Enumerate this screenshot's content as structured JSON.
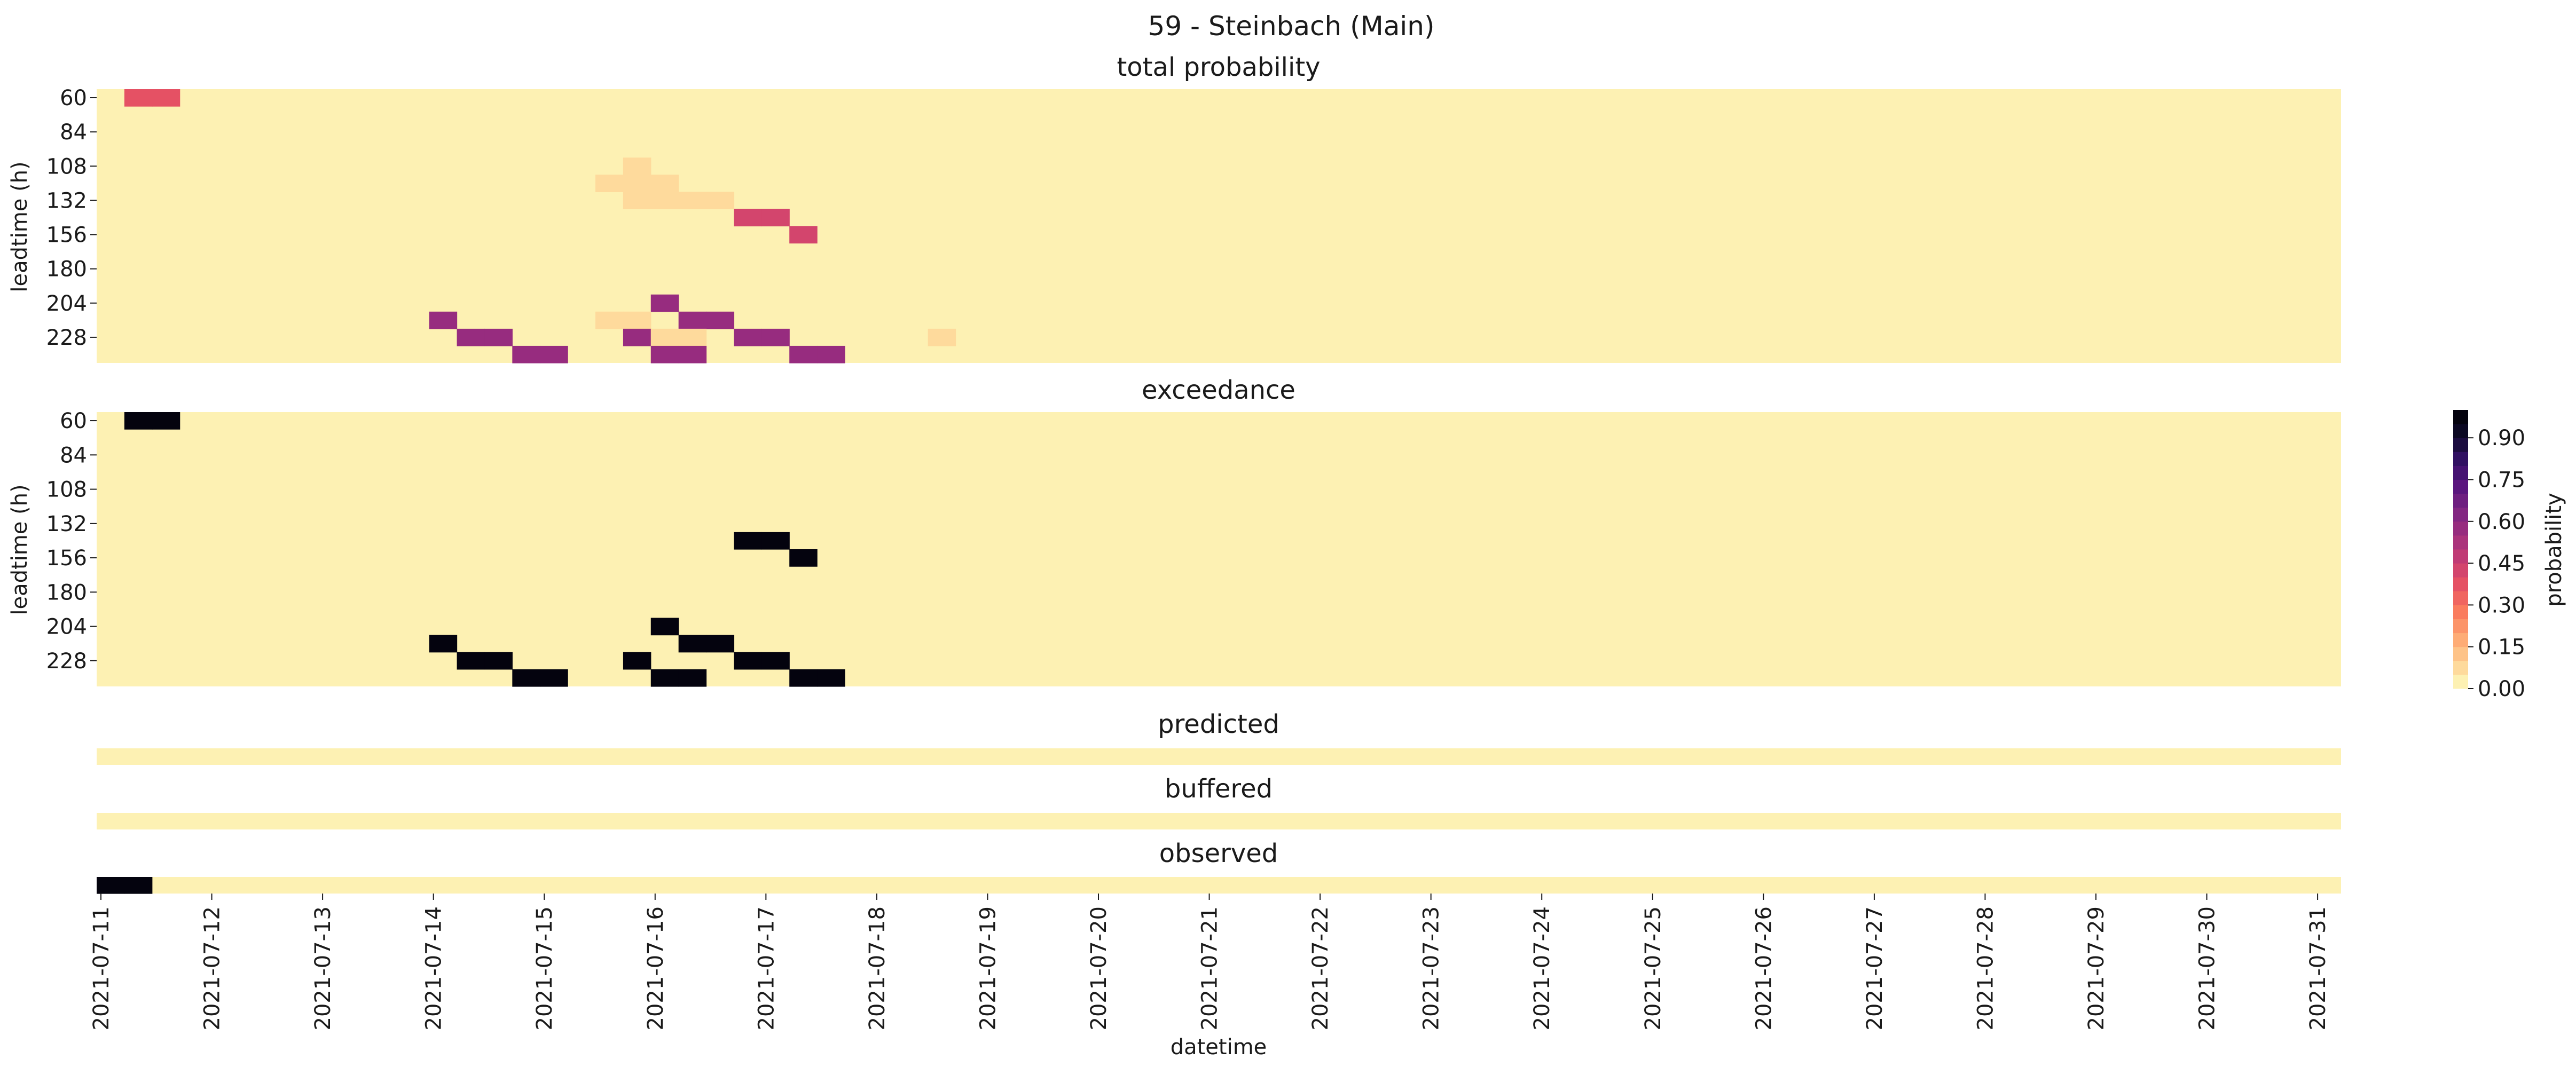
{
  "figure_title": "59 - Steinbach (Main)",
  "chart_data": {
    "type": "heatmap",
    "x_label": "datetime",
    "y_label": "leadtime (h)",
    "x_start": "2021-07-11",
    "x_end": "2021-07-31",
    "x_step_hours": 6,
    "x_tick_labels": [
      "2021-07-11",
      "2021-07-12",
      "2021-07-13",
      "2021-07-14",
      "2021-07-15",
      "2021-07-16",
      "2021-07-17",
      "2021-07-18",
      "2021-07-19",
      "2021-07-20",
      "2021-07-21",
      "2021-07-22",
      "2021-07-23",
      "2021-07-24",
      "2021-07-25",
      "2021-07-26",
      "2021-07-27",
      "2021-07-28",
      "2021-07-29",
      "2021-07-30",
      "2021-07-31"
    ],
    "leadtimes": [
      60,
      72,
      84,
      96,
      108,
      120,
      132,
      144,
      156,
      168,
      180,
      192,
      204,
      216,
      228,
      240
    ],
    "leadtime_tick_labels": [
      "60",
      "84",
      "108",
      "132",
      "156",
      "180",
      "204",
      "228"
    ],
    "colorbar": {
      "label": "probability",
      "colormap": "magma_r",
      "levels": 20,
      "min": 0,
      "max": 1,
      "tick_labels": [
        "0.00",
        "0.15",
        "0.30",
        "0.45",
        "0.60",
        "0.75",
        "0.90"
      ],
      "tick_values": [
        0,
        0.15,
        0.3,
        0.45,
        0.6,
        0.75,
        0.9
      ],
      "stops": [
        "#fcfdbf",
        "#fed395",
        "#fea973",
        "#fa7d5e",
        "#e95462",
        "#c83e73",
        "#a3307e",
        "#7e2482",
        "#59157e",
        "#331067",
        "#0d0a29",
        "#000004"
      ]
    },
    "panels": [
      {
        "title": "total probability",
        "cells": [
          {
            "date": "2021-07-11T06:00",
            "leadtime": 60,
            "value": 0.35
          },
          {
            "date": "2021-07-11T12:00",
            "leadtime": 60,
            "value": 0.35
          },
          {
            "date": "2021-07-15T18:00",
            "leadtime": 108,
            "value": 0.07
          },
          {
            "date": "2021-07-15T12:00",
            "leadtime": 120,
            "value": 0.07
          },
          {
            "date": "2021-07-15T18:00",
            "leadtime": 120,
            "value": 0.07
          },
          {
            "date": "2021-07-16T00:00",
            "leadtime": 120,
            "value": 0.07
          },
          {
            "date": "2021-07-15T18:00",
            "leadtime": 132,
            "value": 0.07
          },
          {
            "date": "2021-07-16T00:00",
            "leadtime": 132,
            "value": 0.07
          },
          {
            "date": "2021-07-16T06:00",
            "leadtime": 132,
            "value": 0.07
          },
          {
            "date": "2021-07-16T12:00",
            "leadtime": 132,
            "value": 0.07
          },
          {
            "date": "2021-07-16T18:00",
            "leadtime": 144,
            "value": 0.4
          },
          {
            "date": "2021-07-17T00:00",
            "leadtime": 144,
            "value": 0.4
          },
          {
            "date": "2021-07-17T06:00",
            "leadtime": 156,
            "value": 0.4
          },
          {
            "date": "2021-07-16T00:00",
            "leadtime": 204,
            "value": 0.55
          },
          {
            "date": "2021-07-14T00:00",
            "leadtime": 216,
            "value": 0.55
          },
          {
            "date": "2021-07-15T12:00",
            "leadtime": 216,
            "value": 0.07
          },
          {
            "date": "2021-07-15T18:00",
            "leadtime": 216,
            "value": 0.07
          },
          {
            "date": "2021-07-16T06:00",
            "leadtime": 216,
            "value": 0.55
          },
          {
            "date": "2021-07-16T12:00",
            "leadtime": 216,
            "value": 0.55
          },
          {
            "date": "2021-07-14T06:00",
            "leadtime": 228,
            "value": 0.55
          },
          {
            "date": "2021-07-14T12:00",
            "leadtime": 228,
            "value": 0.55
          },
          {
            "date": "2021-07-15T18:00",
            "leadtime": 228,
            "value": 0.55
          },
          {
            "date": "2021-07-16T00:00",
            "leadtime": 228,
            "value": 0.07
          },
          {
            "date": "2021-07-16T06:00",
            "leadtime": 228,
            "value": 0.07
          },
          {
            "date": "2021-07-16T18:00",
            "leadtime": 228,
            "value": 0.55
          },
          {
            "date": "2021-07-17T00:00",
            "leadtime": 228,
            "value": 0.55
          },
          {
            "date": "2021-07-18T12:00",
            "leadtime": 228,
            "value": 0.07
          },
          {
            "date": "2021-07-14T18:00",
            "leadtime": 240,
            "value": 0.55
          },
          {
            "date": "2021-07-15T00:00",
            "leadtime": 240,
            "value": 0.55
          },
          {
            "date": "2021-07-16T00:00",
            "leadtime": 240,
            "value": 0.55
          },
          {
            "date": "2021-07-16T06:00",
            "leadtime": 240,
            "value": 0.55
          },
          {
            "date": "2021-07-17T06:00",
            "leadtime": 240,
            "value": 0.55
          },
          {
            "date": "2021-07-17T12:00",
            "leadtime": 240,
            "value": 0.55
          }
        ]
      },
      {
        "title": "exceedance",
        "cells": [
          {
            "date": "2021-07-11T06:00",
            "leadtime": 60,
            "value": 1
          },
          {
            "date": "2021-07-11T12:00",
            "leadtime": 60,
            "value": 1
          },
          {
            "date": "2021-07-16T18:00",
            "leadtime": 144,
            "value": 1
          },
          {
            "date": "2021-07-17T00:00",
            "leadtime": 144,
            "value": 1
          },
          {
            "date": "2021-07-17T06:00",
            "leadtime": 156,
            "value": 1
          },
          {
            "date": "2021-07-16T00:00",
            "leadtime": 204,
            "value": 1
          },
          {
            "date": "2021-07-14T00:00",
            "leadtime": 216,
            "value": 1
          },
          {
            "date": "2021-07-16T06:00",
            "leadtime": 216,
            "value": 1
          },
          {
            "date": "2021-07-16T12:00",
            "leadtime": 216,
            "value": 1
          },
          {
            "date": "2021-07-14T06:00",
            "leadtime": 228,
            "value": 1
          },
          {
            "date": "2021-07-14T12:00",
            "leadtime": 228,
            "value": 1
          },
          {
            "date": "2021-07-15T18:00",
            "leadtime": 228,
            "value": 1
          },
          {
            "date": "2021-07-16T18:00",
            "leadtime": 228,
            "value": 1
          },
          {
            "date": "2021-07-17T00:00",
            "leadtime": 228,
            "value": 1
          },
          {
            "date": "2021-07-14T18:00",
            "leadtime": 240,
            "value": 1
          },
          {
            "date": "2021-07-15T00:00",
            "leadtime": 240,
            "value": 1
          },
          {
            "date": "2021-07-16T00:00",
            "leadtime": 240,
            "value": 1
          },
          {
            "date": "2021-07-16T06:00",
            "leadtime": 240,
            "value": 1
          },
          {
            "date": "2021-07-17T06:00",
            "leadtime": 240,
            "value": 1
          },
          {
            "date": "2021-07-17T12:00",
            "leadtime": 240,
            "value": 1
          }
        ]
      },
      {
        "title": "predicted",
        "cells": []
      },
      {
        "title": "buffered",
        "cells": []
      },
      {
        "title": "observed",
        "cells": [
          {
            "date": "2021-07-11T00:00",
            "value": 1
          },
          {
            "date": "2021-07-11T06:00",
            "value": 1
          }
        ]
      }
    ]
  }
}
